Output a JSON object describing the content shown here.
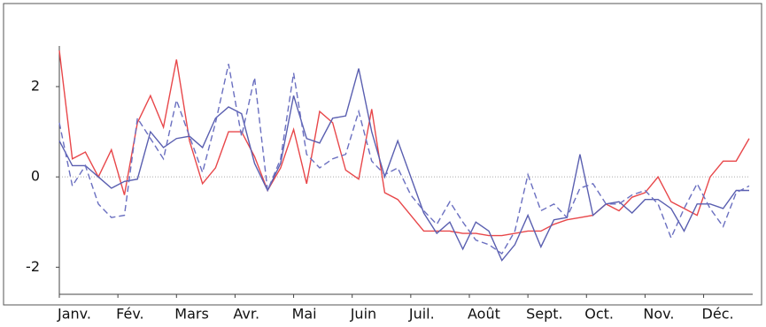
{
  "chart_data": {
    "type": "line",
    "x": [
      0,
      1,
      2,
      3,
      4,
      5,
      6,
      7,
      8,
      9,
      10,
      11,
      12,
      13,
      14,
      15,
      16,
      17,
      18,
      19,
      20,
      21,
      22,
      23,
      24,
      25,
      26,
      27,
      28,
      29,
      30,
      31,
      32,
      33,
      34,
      35,
      36,
      37,
      38,
      39,
      40,
      41,
      42,
      43,
      44,
      45,
      46,
      47,
      48,
      49,
      50,
      51,
      52,
      53
    ],
    "xlim": [
      0,
      53
    ],
    "xticks": [
      {
        "value": 0,
        "label": "Janv."
      },
      {
        "value": 4.5,
        "label": "Fév."
      },
      {
        "value": 9,
        "label": "Mars"
      },
      {
        "value": 13.5,
        "label": "Avr."
      },
      {
        "value": 18,
        "label": "Mai"
      },
      {
        "value": 22.5,
        "label": "Juin"
      },
      {
        "value": 27,
        "label": "Juil."
      },
      {
        "value": 31.5,
        "label": "Août"
      },
      {
        "value": 36,
        "label": "Sept."
      },
      {
        "value": 40.5,
        "label": "Oct."
      },
      {
        "value": 45,
        "label": "Nov."
      },
      {
        "value": 49.5,
        "label": "Déc."
      }
    ],
    "ylim": [
      -2.6,
      2.9
    ],
    "yticks": [
      2,
      0,
      -2
    ],
    "zero_line": true,
    "series": [
      {
        "color": "#e8474a",
        "dashed": false,
        "values": [
          2.8,
          0.4,
          0.55,
          0.0,
          0.6,
          -0.4,
          1.2,
          1.8,
          1.1,
          2.6,
          0.8,
          -0.15,
          0.2,
          1.0,
          1.0,
          0.45,
          -0.3,
          0.2,
          1.05,
          -0.15,
          1.45,
          1.2,
          0.15,
          -0.05,
          1.5,
          -0.35,
          -0.5,
          -0.85,
          -1.2,
          -1.2,
          -1.2,
          -1.25,
          -1.25,
          -1.3,
          -1.3,
          -1.25,
          -1.2,
          -1.2,
          -1.05,
          -0.95,
          -0.9,
          -0.85,
          -0.6,
          -0.75,
          -0.45,
          -0.35,
          0.0,
          -0.55,
          -0.7,
          -0.85,
          0.0,
          0.35,
          0.35,
          0.85
        ]
      },
      {
        "color": "#5a5fb0",
        "dashed": false,
        "values": [
          0.8,
          0.25,
          0.25,
          0.0,
          -0.25,
          -0.1,
          -0.05,
          1.0,
          0.65,
          0.85,
          0.9,
          0.65,
          1.3,
          1.55,
          1.4,
          0.3,
          -0.3,
          0.3,
          1.8,
          0.85,
          0.75,
          1.3,
          1.35,
          2.4,
          1.0,
          0.0,
          0.8,
          0.0,
          -0.8,
          -1.25,
          -1.0,
          -1.6,
          -1.0,
          -1.2,
          -1.85,
          -1.5,
          -0.85,
          -1.55,
          -0.95,
          -0.9,
          0.5,
          -0.85,
          -0.6,
          -0.55,
          -0.8,
          -0.5,
          -0.5,
          -0.7,
          -1.2,
          -0.6,
          -0.6,
          -0.7,
          -0.3,
          -0.3
        ]
      },
      {
        "color": "#6a6fc0",
        "dashed": true,
        "values": [
          1.2,
          -0.2,
          0.25,
          -0.6,
          -0.9,
          -0.85,
          1.3,
          0.85,
          0.4,
          1.7,
          0.9,
          0.1,
          1.2,
          2.5,
          0.9,
          2.2,
          -0.3,
          0.4,
          2.3,
          0.5,
          0.2,
          0.4,
          0.5,
          1.45,
          0.35,
          0.05,
          0.2,
          -0.4,
          -0.75,
          -1.05,
          -0.55,
          -1.0,
          -1.4,
          -1.5,
          -1.7,
          -1.2,
          0.05,
          -0.75,
          -0.6,
          -0.9,
          -0.25,
          -0.15,
          -0.6,
          -0.6,
          -0.4,
          -0.3,
          -0.6,
          -1.35,
          -0.7,
          -0.15,
          -0.7,
          -1.1,
          -0.35,
          -0.2
        ]
      }
    ]
  }
}
